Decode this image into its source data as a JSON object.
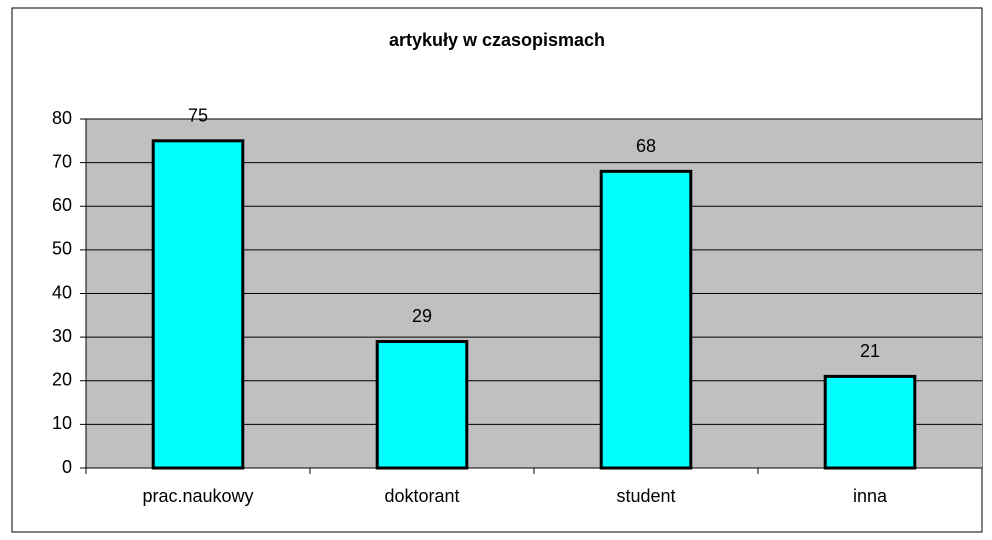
{
  "chart_data": {
    "type": "bar",
    "title": "artykuły w czasopismach",
    "categories": [
      "prac.naukowy",
      "doktorant",
      "student",
      "inna"
    ],
    "values": [
      75,
      29,
      68,
      21
    ],
    "color": "#00ffff",
    "ylim": [
      0,
      80
    ],
    "yticks": [
      0,
      10,
      20,
      30,
      40,
      50,
      60,
      70,
      80
    ],
    "grid": true
  }
}
